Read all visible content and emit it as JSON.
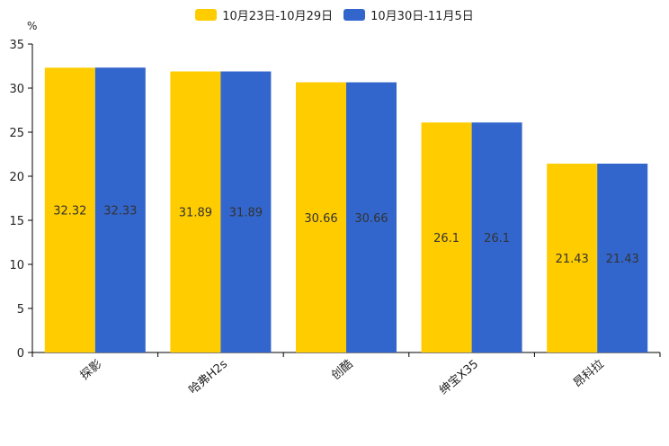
{
  "chart_data": {
    "type": "bar",
    "title": "",
    "ylabel": "%",
    "xlabel": "",
    "ylim": [
      0,
      35
    ],
    "yticks": [
      0,
      5,
      10,
      15,
      20,
      25,
      30,
      35
    ],
    "categories": [
      "探影",
      "哈弗H2s",
      "创酷",
      "绅宝X35",
      "昂科拉"
    ],
    "series": [
      {
        "name": "10月23日-10月29日",
        "color": "#FFCC00",
        "values": [
          32.32,
          31.89,
          30.66,
          26.1,
          21.43
        ]
      },
      {
        "name": "10月30日-11月5日",
        "color": "#3366CC",
        "values": [
          32.33,
          31.89,
          30.66,
          26.1,
          21.43
        ]
      }
    ],
    "legend_position": "top-center",
    "grid": false
  }
}
